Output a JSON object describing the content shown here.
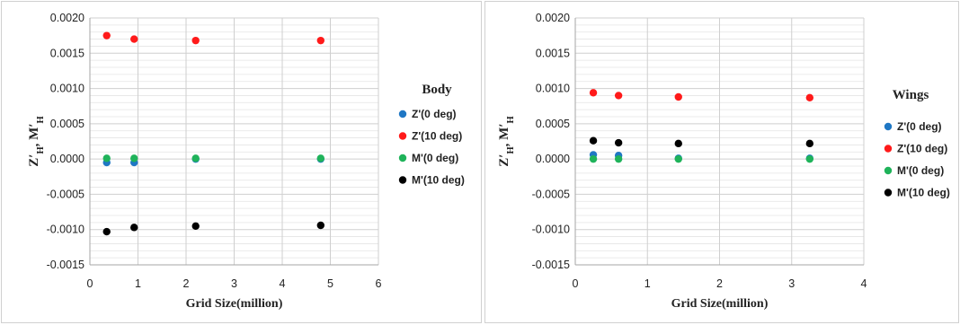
{
  "chart_data": [
    {
      "type": "scatter",
      "legend_title": "Body",
      "xlabel": "Grid Size(million)",
      "ylabel_main": "Z′",
      "ylabel_sub1": "H",
      "ylabel_mid": ", M",
      "ylabel_prime": "′",
      "ylabel_sub2": "H",
      "xlim": [
        0,
        6
      ],
      "ylim": [
        -0.0015,
        0.002
      ],
      "x_ticks": [
        "0",
        "1",
        "2",
        "3",
        "4",
        "5",
        "6"
      ],
      "y_ticks": [
        "-0.0015",
        "-0.0010",
        "-0.0005",
        "0.0000",
        "0.0005",
        "0.0010",
        "0.0015",
        "0.0020"
      ],
      "legend_position": "right",
      "grid": true,
      "series": [
        {
          "name": "Z'(0 deg)",
          "color": "#1f77c4",
          "x": [
            0.35,
            0.92,
            2.2,
            4.8
          ],
          "y": [
            -5e-05,
            -5e-05,
            0.0,
            0.0
          ]
        },
        {
          "name": "Z'(10 deg)",
          "color": "#ff1a1a",
          "x": [
            0.35,
            0.92,
            2.2,
            4.8
          ],
          "y": [
            0.00175,
            0.0017,
            0.00168,
            0.00168
          ]
        },
        {
          "name": "M'(0 deg)",
          "color": "#1fb35a",
          "x": [
            0.35,
            0.92,
            2.2,
            4.8
          ],
          "y": [
            1e-05,
            1e-05,
            1e-05,
            1e-05
          ]
        },
        {
          "name": "M'(10 deg)",
          "color": "#000000",
          "x": [
            0.35,
            0.92,
            2.2,
            4.8
          ],
          "y": [
            -0.00103,
            -0.00097,
            -0.00095,
            -0.00094
          ]
        }
      ]
    },
    {
      "type": "scatter",
      "legend_title": "Wings",
      "xlabel": "Grid Size(million)",
      "ylabel_main": "Z′",
      "ylabel_sub1": "H",
      "ylabel_mid": ", M",
      "ylabel_prime": "′",
      "ylabel_sub2": "H",
      "xlim": [
        0,
        4
      ],
      "ylim": [
        -0.0015,
        0.002
      ],
      "x_ticks": [
        "0",
        "1",
        "2",
        "3",
        "4"
      ],
      "y_ticks": [
        "-0.0015",
        "-0.0010",
        "-0.0005",
        "0.0000",
        "0.0005",
        "0.0010",
        "0.0015",
        "0.0020"
      ],
      "legend_position": "right",
      "grid": true,
      "series": [
        {
          "name": "Z'(0 deg)",
          "color": "#1f77c4",
          "x": [
            0.25,
            0.6,
            1.43,
            3.25
          ],
          "y": [
            6e-05,
            5e-05,
            1e-05,
            1e-05
          ]
        },
        {
          "name": "Z'(10 deg)",
          "color": "#ff1a1a",
          "x": [
            0.25,
            0.6,
            1.43,
            3.25
          ],
          "y": [
            0.00094,
            0.0009,
            0.00088,
            0.00087
          ]
        },
        {
          "name": "M'(0 deg)",
          "color": "#1fb35a",
          "x": [
            0.25,
            0.6,
            1.43,
            3.25
          ],
          "y": [
            0.0,
            0.0,
            0.0,
            0.0
          ]
        },
        {
          "name": "M'(10 deg)",
          "color": "#000000",
          "x": [
            0.25,
            0.6,
            1.43,
            3.25
          ],
          "y": [
            0.00026,
            0.00023,
            0.00022,
            0.00022
          ]
        }
      ]
    }
  ]
}
